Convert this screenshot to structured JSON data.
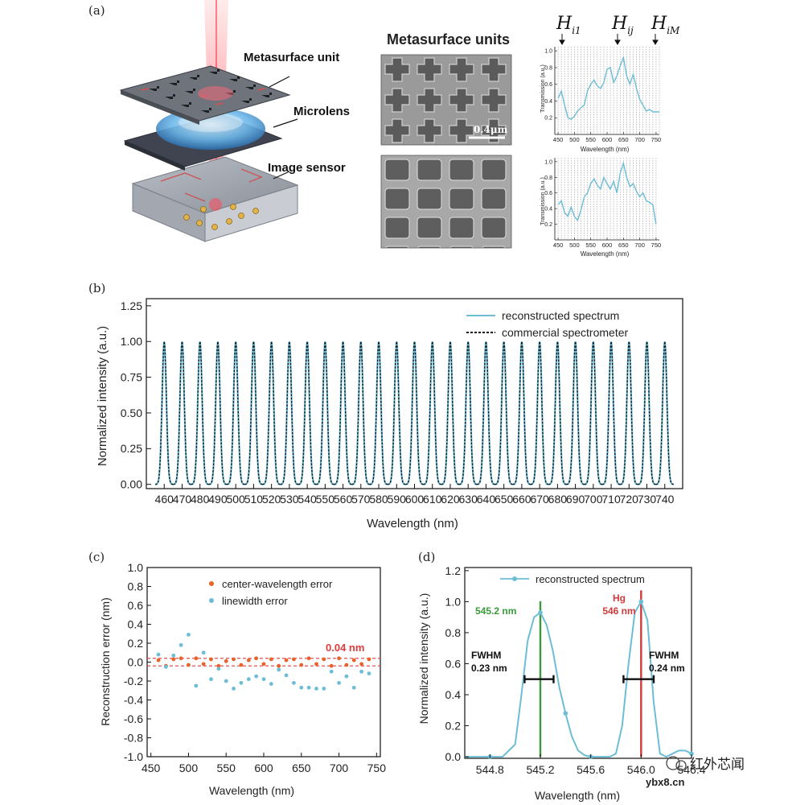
{
  "panel_labels": {
    "a": "(a)",
    "b": "(b)",
    "c": "(c)",
    "d": "(d)"
  },
  "panel_a": {
    "device_labels": {
      "metasurface_unit": "Metasurface unit",
      "microlens": "Microlens",
      "image_sensor": "Image sensor"
    },
    "sem_title": "Metasurface units",
    "scale_bar": "0.4μm",
    "h_labels": {
      "first": {
        "H": "H",
        "sub": "i1"
      },
      "middle": {
        "H": "H",
        "sub": "ij"
      },
      "last": {
        "H": "H",
        "sub": "iM"
      }
    },
    "transmission_ylabel": "Transmission (a.u.)",
    "transmission_xlabel": "Wavelength (nm)"
  },
  "watermark": {
    "site": "ybx8.cn",
    "name": "红外芯闻"
  },
  "chart_data": [
    {
      "id": "a-top",
      "type": "line",
      "xlabel": "Wavelength (nm)",
      "ylabel": "Transmission (a.u.)",
      "xlim": [
        440,
        760
      ],
      "ylim": [
        0,
        1.05
      ],
      "xticks": [
        450,
        500,
        550,
        600,
        650,
        700,
        750
      ],
      "yticks": [
        0.2,
        0.4,
        0.6,
        0.8,
        1.0
      ],
      "x": [
        450,
        460,
        470,
        480,
        490,
        500,
        510,
        520,
        530,
        540,
        550,
        560,
        570,
        580,
        590,
        600,
        610,
        620,
        630,
        640,
        650,
        660,
        670,
        680,
        690,
        700,
        710,
        720,
        730,
        740,
        750,
        760
      ],
      "y": [
        0.43,
        0.52,
        0.35,
        0.2,
        0.18,
        0.22,
        0.28,
        0.32,
        0.35,
        0.52,
        0.6,
        0.65,
        0.58,
        0.55,
        0.62,
        0.78,
        0.8,
        0.62,
        0.7,
        0.82,
        0.92,
        0.7,
        0.6,
        0.72,
        0.55,
        0.42,
        0.35,
        0.28,
        0.3,
        0.27,
        0.27,
        0.27
      ]
    },
    {
      "id": "a-bottom",
      "type": "line",
      "xlabel": "Wavelength (nm)",
      "ylabel": "Transmission (a.u.)",
      "xlim": [
        440,
        760
      ],
      "ylim": [
        0,
        1.05
      ],
      "xticks": [
        450,
        500,
        550,
        600,
        650,
        700,
        750
      ],
      "yticks": [
        0.2,
        0.4,
        0.6,
        0.8,
        1.0
      ],
      "x": [
        450,
        460,
        470,
        480,
        490,
        500,
        510,
        520,
        530,
        540,
        550,
        560,
        570,
        580,
        590,
        600,
        610,
        620,
        630,
        640,
        650,
        660,
        670,
        680,
        690,
        700,
        710,
        720,
        730,
        740,
        750
      ],
      "y": [
        0.45,
        0.5,
        0.35,
        0.3,
        0.42,
        0.3,
        0.25,
        0.38,
        0.55,
        0.6,
        0.72,
        0.78,
        0.7,
        0.65,
        0.8,
        0.72,
        0.65,
        0.75,
        0.6,
        0.85,
        0.98,
        0.8,
        0.68,
        0.72,
        0.62,
        0.55,
        0.6,
        0.5,
        0.48,
        0.45,
        0.2
      ]
    },
    {
      "id": "b",
      "type": "line",
      "title": "",
      "xlabel": "Wavelength (nm)",
      "ylabel": "Normalized intensity (a.u.)",
      "xlim": [
        450,
        750
      ],
      "ylim": [
        -0.03,
        1.3
      ],
      "xticks": [
        460,
        470,
        480,
        490,
        500,
        510,
        520,
        530,
        540,
        550,
        560,
        570,
        580,
        590,
        600,
        610,
        620,
        630,
        640,
        650,
        660,
        670,
        680,
        690,
        700,
        710,
        720,
        730,
        740
      ],
      "yticks": [
        0.0,
        0.25,
        0.5,
        0.75,
        1.0,
        1.25
      ],
      "ytick_labels": [
        "0.00",
        "0.25",
        "0.50",
        "0.75",
        "1.00",
        "1.25"
      ],
      "series": [
        {
          "name": "reconstructed spectrum",
          "style": "solid",
          "color": "#6dbdd6",
          "peak_centers": [
            460,
            470,
            480,
            490,
            500,
            510,
            520,
            530,
            540,
            550,
            560,
            570,
            580,
            590,
            600,
            610,
            620,
            630,
            640,
            650,
            660,
            670,
            680,
            690,
            700,
            710,
            720,
            730,
            740
          ],
          "peak_height": 1.0,
          "peak_sigma_nm": 1.2
        },
        {
          "name": "commercial spectrometer",
          "style": "dashed",
          "color": "#111111",
          "peak_centers": [
            460,
            470,
            480,
            490,
            500,
            510,
            520,
            530,
            540,
            550,
            560,
            570,
            580,
            590,
            600,
            610,
            620,
            630,
            640,
            650,
            660,
            670,
            680,
            690,
            700,
            710,
            720,
            730,
            740
          ],
          "peak_height": 1.0,
          "peak_sigma_nm": 1.2
        }
      ],
      "legend": "top-right"
    },
    {
      "id": "c",
      "type": "scatter",
      "xlabel": "Wavelength (nm)",
      "ylabel": "Reconstruction error (nm)",
      "xlim": [
        445,
        755
      ],
      "ylim": [
        -1.0,
        1.0
      ],
      "xticks": [
        450,
        500,
        550,
        600,
        650,
        700,
        750
      ],
      "yticks": [
        -1.0,
        -0.8,
        -0.6,
        -0.4,
        -0.2,
        0.0,
        0.2,
        0.4,
        0.6,
        0.8,
        1.0
      ],
      "ytick_labels": [
        "-1.0",
        "-0.8",
        "-0.6",
        "-0.4",
        "-0.2",
        "0.0",
        "0.2",
        "0.4",
        "0.6",
        "0.8",
        "1.0"
      ],
      "series": [
        {
          "name": "center-wavelength error",
          "color": "#e8622a",
          "x": [
            460,
            470,
            480,
            490,
            500,
            510,
            520,
            530,
            540,
            550,
            560,
            570,
            580,
            590,
            600,
            610,
            620,
            630,
            640,
            650,
            660,
            670,
            680,
            690,
            700,
            710,
            720,
            730,
            740
          ],
          "y": [
            0.02,
            -0.04,
            0.03,
            0.04,
            -0.03,
            0.04,
            -0.02,
            0.03,
            -0.04,
            0.01,
            0.03,
            -0.03,
            0.02,
            0.04,
            -0.02,
            0.03,
            -0.04,
            0.02,
            0.03,
            -0.03,
            0.04,
            -0.02,
            0.03,
            -0.04,
            0.04,
            -0.03,
            0.02,
            -0.02,
            0.03
          ]
        },
        {
          "name": "linewidth error",
          "color": "#6dbdd6",
          "x": [
            460,
            470,
            480,
            490,
            500,
            510,
            520,
            530,
            540,
            550,
            560,
            570,
            580,
            590,
            600,
            610,
            620,
            630,
            640,
            650,
            660,
            670,
            680,
            690,
            700,
            710,
            720,
            730,
            740
          ],
          "y": [
            0.08,
            -0.05,
            0.07,
            0.18,
            0.29,
            -0.25,
            0.1,
            -0.18,
            -0.07,
            -0.2,
            -0.28,
            -0.22,
            -0.18,
            -0.15,
            -0.18,
            -0.23,
            -0.08,
            -0.14,
            -0.22,
            -0.27,
            -0.27,
            -0.28,
            -0.28,
            -0.1,
            -0.22,
            -0.15,
            -0.27,
            -0.1,
            -0.12
          ]
        }
      ],
      "threshold": {
        "value": 0.04,
        "label": "0.04 nm",
        "color": "#e03c3c"
      },
      "legend": "top-right"
    },
    {
      "id": "d",
      "type": "line",
      "xlabel": "Wavelength (nm)",
      "ylabel": "Normalized intensity (a.u.)",
      "xlim": [
        544.6,
        546.4
      ],
      "ylim": [
        -0.01,
        1.22
      ],
      "xticks": [
        544.8,
        545.2,
        545.6,
        546.0,
        546.4
      ],
      "xtick_labels": [
        "544.8",
        "545.2",
        "545.6",
        "546.0",
        "546.4"
      ],
      "yticks": [
        0.0,
        0.2,
        0.4,
        0.6,
        0.8,
        1.0,
        1.2
      ],
      "ytick_labels": [
        "0.0",
        "0.2",
        "0.4",
        "0.6",
        "0.8",
        "1.0",
        "1.2"
      ],
      "series": [
        {
          "name": "reconstructed spectrum",
          "color": "#6dbdd6",
          "x": [
            544.6,
            544.7,
            544.8,
            544.9,
            545.0,
            545.05,
            545.1,
            545.15,
            545.2,
            545.25,
            545.3,
            545.35,
            545.4,
            545.45,
            545.5,
            545.55,
            545.6,
            545.65,
            545.7,
            545.75,
            545.8,
            545.85,
            545.9,
            545.95,
            546.0,
            546.05,
            546.1,
            546.15,
            546.2,
            546.25,
            546.3,
            546.35,
            546.4
          ],
          "y": [
            0.0,
            0.0,
            0.0,
            0.0,
            0.08,
            0.4,
            0.75,
            0.9,
            0.93,
            0.85,
            0.68,
            0.45,
            0.28,
            0.13,
            0.04,
            0.01,
            0.0,
            0.0,
            0.0,
            0.0,
            0.02,
            0.2,
            0.6,
            0.93,
            1.0,
            0.88,
            0.35,
            0.02,
            0.0,
            0.02,
            0.04,
            0.04,
            0.02
          ],
          "marker_x": [
            544.8,
            545.2,
            545.4,
            545.6,
            546.0,
            546.4
          ],
          "marker_y": [
            0.0,
            0.93,
            0.28,
            0.0,
            1.0,
            0.02
          ]
        }
      ],
      "annotations": [
        {
          "x": 545.2,
          "label": "545.2 nm",
          "color": "#3a9a3a"
        },
        {
          "x": 546.0,
          "label_line1": "Hg",
          "label_line2": "546 nm",
          "color": "#d03a3a"
        }
      ],
      "fwhm": [
        {
          "center": 545.19,
          "width": 0.23,
          "y": 0.5,
          "label_line1": "FWHM",
          "label_line2": "0.23 nm"
        },
        {
          "center": 545.98,
          "width": 0.24,
          "y": 0.5,
          "label_line1": "FWHM",
          "label_line2": "0.24 nm"
        }
      ],
      "legend": "top-right"
    }
  ]
}
